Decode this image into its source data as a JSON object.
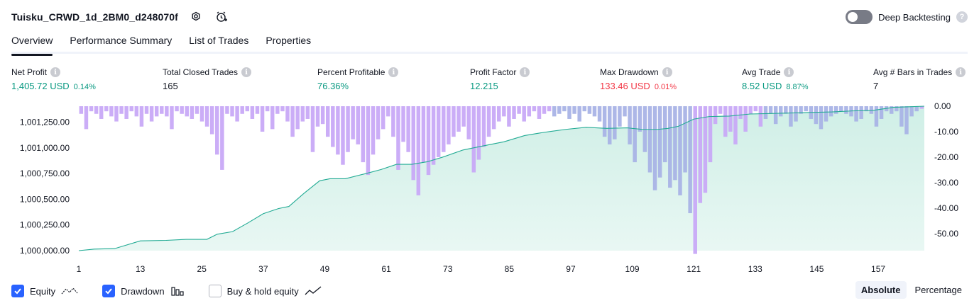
{
  "header": {
    "title": "Tuisku_CRWD_1d_2BM0_d248070f",
    "settings_icon": "settings-icon",
    "alert_icon": "add-alert-icon"
  },
  "deep_backtesting": {
    "label": "Deep Backtesting",
    "enabled": false,
    "help": "?"
  },
  "tabs": [
    {
      "label": "Overview",
      "active": true
    },
    {
      "label": "Performance Summary",
      "active": false
    },
    {
      "label": "List of Trades",
      "active": false
    },
    {
      "label": "Properties",
      "active": false
    }
  ],
  "metrics": [
    {
      "label": "Net Profit",
      "value": "1,405.72 USD",
      "sub": "0.14%",
      "color": "#089981"
    },
    {
      "label": "Total Closed Trades",
      "value": "165",
      "sub": "",
      "color": "#131722"
    },
    {
      "label": "Percent Profitable",
      "value": "76.36%",
      "sub": "",
      "color": "#089981"
    },
    {
      "label": "Profit Factor",
      "value": "12.215",
      "sub": "",
      "color": "#089981"
    },
    {
      "label": "Max Drawdown",
      "value": "133.46 USD",
      "sub": "0.01%",
      "color": "#f23645"
    },
    {
      "label": "Avg Trade",
      "value": "8.52 USD",
      "sub": "8.87%",
      "color": "#089981"
    },
    {
      "label": "Avg # Bars in Trades",
      "value": "7",
      "sub": "",
      "color": "#131722"
    }
  ],
  "legend": {
    "equity": {
      "label": "Equity",
      "checked": true
    },
    "drawdown": {
      "label": "Drawdown",
      "checked": true
    },
    "buy_hold": {
      "label": "Buy & hold equity",
      "checked": false
    }
  },
  "modes": {
    "absolute": "Absolute",
    "percentage": "Percentage",
    "active": "absolute"
  },
  "colors": {
    "equity_line": "#22ab94",
    "equity_fill": "#cdeee5",
    "drawdown_bar": "#c8a9f7",
    "overlap_bar": "#a9b3e6",
    "accent": "#2962ff"
  },
  "chart_data": {
    "type": "area",
    "x_ticks": [
      "1",
      "13",
      "25",
      "37",
      "49",
      "61",
      "73",
      "85",
      "97",
      "109",
      "121",
      "133",
      "145",
      "157"
    ],
    "x_range": [
      1,
      166
    ],
    "left_axis": {
      "ticks": [
        "1,001,250.00",
        "1,001,000.00",
        "1,000,750.00",
        "1,000,500.00",
        "1,000,250.00",
        "1,000,000.00"
      ],
      "range": [
        1000000,
        1001405.72
      ]
    },
    "right_axis": {
      "ticks": [
        "0.00",
        "-10.00",
        "-20.00",
        "-30.00",
        "-40.00",
        "-50.00"
      ],
      "range": [
        -57,
        0
      ]
    },
    "equity_series": {
      "x": [
        1,
        4,
        8,
        13,
        18,
        22,
        26,
        28,
        31,
        34,
        37,
        40,
        42,
        45,
        48,
        50,
        53,
        57,
        60,
        63,
        66,
        69,
        72,
        76,
        80,
        84,
        88,
        91,
        93,
        96,
        100,
        104,
        108,
        111,
        114,
        116,
        118,
        121,
        124,
        128,
        132,
        136,
        140,
        144,
        148,
        152,
        156,
        160,
        163,
        166
      ],
      "y": [
        1000000,
        1000015,
        1000020,
        1000095,
        1000100,
        1000110,
        1000110,
        1000160,
        1000185,
        1000270,
        1000360,
        1000410,
        1000430,
        1000560,
        1000680,
        1000700,
        1000700,
        1000750,
        1000790,
        1000840,
        1000840,
        1000865,
        1000910,
        1000980,
        1001020,
        1001060,
        1001120,
        1001145,
        1001160,
        1001180,
        1001200,
        1001190,
        1001195,
        1001180,
        1001180,
        1001190,
        1001210,
        1001280,
        1001305,
        1001310,
        1001330,
        1001335,
        1001340,
        1001345,
        1001350,
        1001360,
        1001365,
        1001395,
        1001400,
        1001405.72
      ]
    },
    "drawdown_series": {
      "values": [
        -3,
        -9,
        -2,
        -3,
        -5,
        -2,
        -4,
        -6,
        -3,
        -5,
        -2,
        -4,
        -8,
        -3,
        -6,
        -4,
        -3,
        -4,
        -9,
        -2,
        -3,
        -4,
        -5,
        -3,
        -6,
        -8,
        -11,
        -19,
        -25,
        -3,
        -4,
        -6,
        -3,
        -2,
        -5,
        -3,
        -10,
        -2,
        -9,
        -3,
        -2,
        -6,
        -12,
        -9,
        -6,
        -5,
        -18,
        -8,
        -7,
        -12,
        -16,
        -19,
        -23,
        -18,
        -13,
        -15,
        -22,
        -27,
        -19,
        -13,
        -9,
        -4,
        -12,
        -25,
        -14,
        -18,
        -29,
        -35,
        -22,
        -27,
        -23,
        -20,
        -18,
        -15,
        -12,
        -10,
        -8,
        -13,
        -26,
        -21,
        -16,
        -12,
        -9,
        -6,
        -4,
        -8,
        -5,
        -3,
        -6,
        -4,
        -2,
        -5,
        -3,
        -2,
        -4,
        -3,
        -2,
        -5,
        -3,
        -6,
        -2,
        -3,
        -4,
        -6,
        -12,
        -15,
        -13,
        -8,
        -4,
        -15,
        -22,
        -10,
        -18,
        -26,
        -33,
        -28,
        -22,
        -32,
        -29,
        -35,
        -26,
        -42,
        -58,
        -38,
        -34,
        -22,
        -7,
        -3,
        -12,
        -10,
        -15,
        -5,
        -10,
        -3,
        -2,
        -8,
        -5,
        -3,
        -7,
        -4,
        -3,
        -8,
        -6,
        -3,
        -2,
        -5,
        -7,
        -9,
        -6,
        -4,
        -3,
        -2,
        -3,
        -4,
        -6,
        -5,
        -2,
        -3,
        -8,
        -5,
        -2,
        -3,
        -2,
        -8,
        -11,
        -4,
        -2,
        -1
      ],
      "overlap_bins": [
        [
          94,
          121
        ],
        [
          136,
          166
        ]
      ]
    }
  }
}
